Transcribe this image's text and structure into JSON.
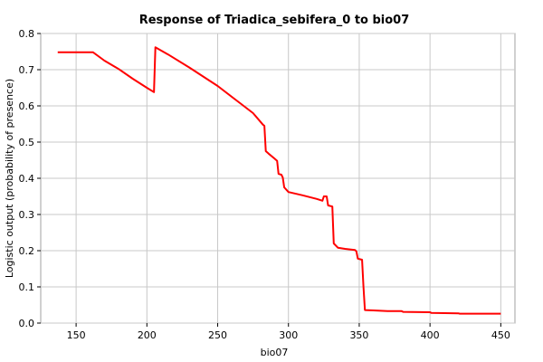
{
  "chart_data": {
    "type": "line",
    "title": "Response of Triadica_sebifera_0 to bio07",
    "xlabel": "bio07",
    "ylabel": "Logistic output (probability of presence)",
    "xlim": [
      125,
      460
    ],
    "ylim": [
      0,
      0.8
    ],
    "xticks": [
      150,
      200,
      250,
      300,
      350,
      400,
      450
    ],
    "xtick_labels": [
      "150",
      "200",
      "250",
      "300",
      "350",
      "400",
      "450"
    ],
    "yticks": [
      0.0,
      0.1,
      0.2,
      0.3,
      0.4,
      0.5,
      0.6,
      0.7,
      0.8
    ],
    "ytick_labels": [
      "0.0",
      "0.1",
      "0.2",
      "0.3",
      "0.4",
      "0.5",
      "0.6",
      "0.7",
      "0.8"
    ],
    "grid": true,
    "legend": "none",
    "series": [
      {
        "color": "#ff0000",
        "points": [
          [
            137,
            0.748
          ],
          [
            162,
            0.748
          ],
          [
            170,
            0.725
          ],
          [
            180,
            0.702
          ],
          [
            190,
            0.675
          ],
          [
            200,
            0.65
          ],
          [
            205,
            0.638
          ],
          [
            206,
            0.762
          ],
          [
            215,
            0.742
          ],
          [
            230,
            0.706
          ],
          [
            250,
            0.655
          ],
          [
            265,
            0.61
          ],
          [
            275,
            0.58
          ],
          [
            282,
            0.548
          ],
          [
            283,
            0.545
          ],
          [
            284,
            0.475
          ],
          [
            286,
            0.468
          ],
          [
            290,
            0.455
          ],
          [
            292,
            0.448
          ],
          [
            293,
            0.412
          ],
          [
            295,
            0.41
          ],
          [
            296,
            0.402
          ],
          [
            297,
            0.375
          ],
          [
            300,
            0.362
          ],
          [
            310,
            0.353
          ],
          [
            320,
            0.343
          ],
          [
            324,
            0.338
          ],
          [
            325,
            0.35
          ],
          [
            327,
            0.35
          ],
          [
            328,
            0.325
          ],
          [
            331,
            0.322
          ],
          [
            332,
            0.22
          ],
          [
            335,
            0.208
          ],
          [
            340,
            0.205
          ],
          [
            347,
            0.202
          ],
          [
            348,
            0.198
          ],
          [
            349,
            0.178
          ],
          [
            352,
            0.175
          ],
          [
            353,
            0.1
          ],
          [
            354,
            0.036
          ],
          [
            360,
            0.035
          ],
          [
            370,
            0.033
          ],
          [
            380,
            0.033
          ],
          [
            381,
            0.031
          ],
          [
            400,
            0.03
          ],
          [
            401,
            0.028
          ],
          [
            420,
            0.027
          ],
          [
            421,
            0.026
          ],
          [
            450,
            0.026
          ]
        ]
      }
    ]
  }
}
